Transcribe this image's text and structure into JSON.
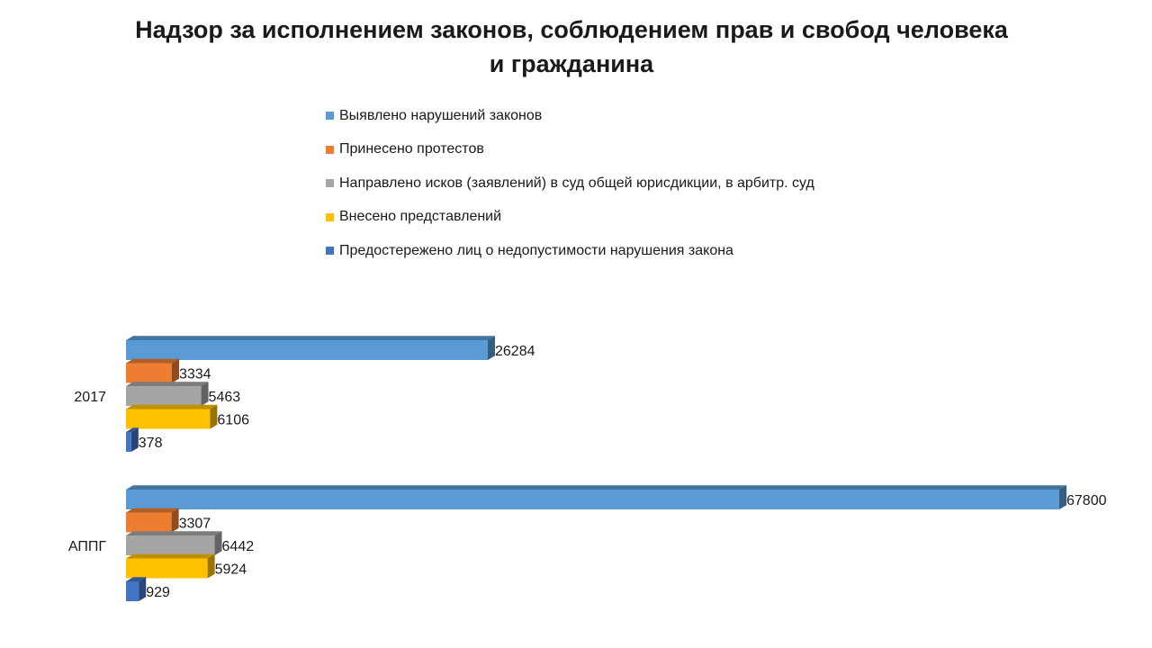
{
  "chart_data": {
    "type": "bar",
    "orientation": "horizontal",
    "title": [
      "Надзор за исполнением законов, соблюдением прав и свобод человека",
      "и гражданина"
    ],
    "categories": [
      "2017",
      "АППГ"
    ],
    "series": [
      {
        "name": "Выявлено нарушений законов",
        "color": "#5B9BD5",
        "values": [
          26284,
          67800
        ]
      },
      {
        "name": "Принесено протестов",
        "color": "#ED7D31",
        "values": [
          3334,
          3307
        ]
      },
      {
        "name": "Направлено исков (заявлений) в суд общей юрисдикции, в арбитр. суд",
        "color": "#A5A5A5",
        "values": [
          5463,
          6442
        ]
      },
      {
        "name": "Внесено представлений",
        "color": "#FFC000",
        "values": [
          6106,
          5924
        ]
      },
      {
        "name": "Предостережено лиц о недопустимости нарушения  закона",
        "color": "#4472C4",
        "values": [
          378,
          929
        ]
      }
    ],
    "legend_position": "top",
    "grid": false,
    "effect": "3d"
  }
}
